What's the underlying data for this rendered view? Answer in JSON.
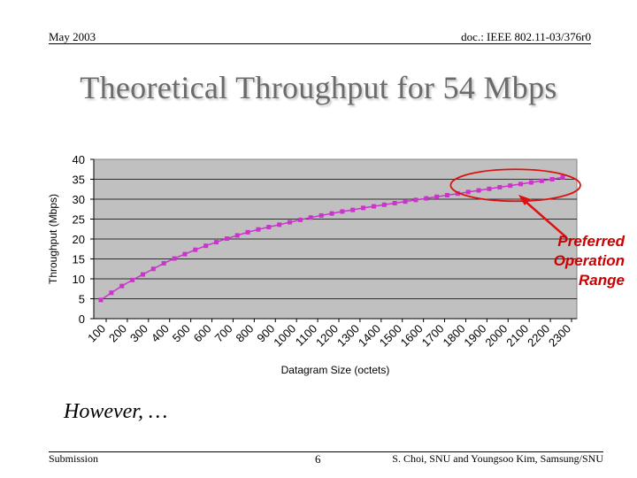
{
  "header": {
    "date": "May 2003",
    "doc_id": "doc.: IEEE 802.11-03/376r0"
  },
  "title": "Theoretical Throughput for 54 Mbps",
  "annotation": {
    "line1": "Preferred",
    "line2": "Operation",
    "line3": "Range"
  },
  "body_text": "However, …",
  "footer": {
    "left": "Submission",
    "page": "6",
    "right": "S. Choi, SNU and Youngsoo Kim, Samsung/SNU"
  },
  "colors": {
    "plot_bg": "#c0c0c0",
    "series": "#cc33cc",
    "highlight": "#dd1111",
    "title": "#6b6b6b"
  },
  "chart_data": {
    "type": "line",
    "title": "",
    "xlabel": "Datagram Size (octets)",
    "ylabel": "Throughput (Mbps)",
    "ylim": [
      0,
      40
    ],
    "yticks": [
      "0",
      "5",
      "10",
      "15",
      "20",
      "25",
      "30",
      "35",
      "40"
    ],
    "categories": [
      "100",
      "200",
      "300",
      "400",
      "500",
      "600",
      "700",
      "800",
      "900",
      "1000",
      "1100",
      "1200",
      "1300",
      "1400",
      "1500",
      "1600",
      "1700",
      "1800",
      "1900",
      "2000",
      "2100",
      "2200",
      "2300"
    ],
    "x": [
      100,
      150,
      200,
      250,
      300,
      350,
      400,
      450,
      500,
      550,
      600,
      650,
      700,
      750,
      800,
      850,
      900,
      950,
      1000,
      1050,
      1100,
      1150,
      1200,
      1250,
      1300,
      1350,
      1400,
      1450,
      1500,
      1550,
      1600,
      1650,
      1700,
      1750,
      1800,
      1850,
      1900,
      1950,
      2000,
      2050,
      2100,
      2150,
      2200,
      2250,
      2300
    ],
    "series": [
      {
        "name": "Throughput",
        "values": [
          4.7,
          6.5,
          8.2,
          9.7,
          11.1,
          12.5,
          13.9,
          15.1,
          16.2,
          17.3,
          18.3,
          19.2,
          20.1,
          20.9,
          21.7,
          22.4,
          23.0,
          23.6,
          24.2,
          24.8,
          25.4,
          25.9,
          26.4,
          26.9,
          27.3,
          27.8,
          28.2,
          28.6,
          29.0,
          29.4,
          29.8,
          30.2,
          30.6,
          31.0,
          31.4,
          31.8,
          32.2,
          32.6,
          33.0,
          33.4,
          33.8,
          34.2,
          34.6,
          35.0,
          35.5
        ]
      }
    ],
    "grid": true,
    "highlight": "Preferred Operation Range"
  }
}
